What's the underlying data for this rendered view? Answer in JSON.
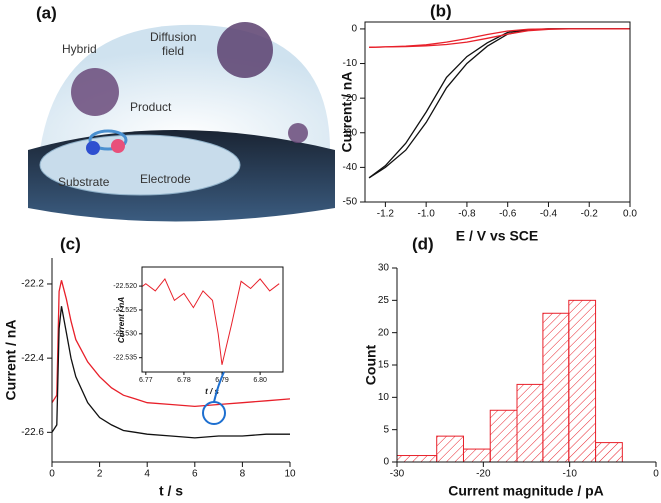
{
  "panel_a": {
    "label": "(a)",
    "hybrid": "Hybrid",
    "diffusion": "Diffusion",
    "field": "field",
    "product": "Product",
    "substrate": "Substrate",
    "electrode": "Electrode"
  },
  "chart_data": [
    {
      "type": "line",
      "label": "(b)",
      "x_label": "E / V vs SCE",
      "y_label": "Current / nA",
      "x": [
        -1.28,
        -1.2,
        -1.1,
        -1.0,
        -0.9,
        -0.8,
        -0.7,
        -0.6,
        -0.5,
        -0.4,
        -0.3,
        -0.2,
        -0.1,
        0.0
      ],
      "series": [
        {
          "color": "#111111",
          "values": [
            -43,
            -40,
            -35,
            -27,
            -17,
            -10,
            -5,
            -1.5,
            -0.3,
            0,
            0,
            0,
            0,
            0
          ]
        },
        {
          "color": "#111111",
          "values": [
            -43,
            -39.5,
            -33,
            -24,
            -14,
            -8,
            -4,
            -1,
            -0.2,
            0,
            0,
            0,
            0,
            0
          ]
        },
        {
          "color": "#e8202a",
          "values": [
            -5.3,
            -5.2,
            -5.0,
            -4.6,
            -3.8,
            -2.8,
            -1.6,
            -0.6,
            -0.1,
            0,
            0,
            0,
            0,
            0
          ]
        },
        {
          "color": "#e8202a",
          "values": [
            -5.3,
            -5.2,
            -5.1,
            -4.9,
            -4.5,
            -3.8,
            -2.7,
            -1.5,
            -0.5,
            -0.1,
            0,
            0,
            0,
            0
          ]
        }
      ],
      "xlim": [
        -1.3,
        0.0
      ],
      "ylim": [
        -50,
        2
      ],
      "xticks": [
        -1.2,
        {
          "value": -1.0,
          "label": "-1.0"
        },
        -0.8,
        -0.6,
        -0.4,
        -0.2,
        {
          "value": 0,
          "label": "0.0"
        }
      ],
      "yticks": [
        0,
        -10,
        -20,
        -30,
        -40,
        -50
      ]
    },
    {
      "type": "line",
      "label": "(c)",
      "x_label": "t / s",
      "y_label": "Current / nA",
      "x": [
        0,
        0.2,
        0.3,
        0.4,
        0.6,
        0.8,
        1,
        1.5,
        2,
        2.5,
        3,
        3.5,
        4,
        5,
        6,
        7,
        8,
        9,
        10
      ],
      "series": [
        {
          "color": "#e8202a",
          "values": [
            -22.52,
            -22.5,
            -22.22,
            -22.19,
            -22.24,
            -22.3,
            -22.35,
            -22.41,
            -22.45,
            -22.48,
            -22.5,
            -22.51,
            -22.52,
            -22.525,
            -22.53,
            -22.525,
            -22.52,
            -22.515,
            -22.51
          ]
        },
        {
          "color": "#111111",
          "values": [
            -22.6,
            -22.58,
            -22.32,
            -22.26,
            -22.33,
            -22.4,
            -22.45,
            -22.52,
            -22.56,
            -22.58,
            -22.595,
            -22.6,
            -22.605,
            -22.61,
            -22.615,
            -22.61,
            -22.61,
            -22.605,
            -22.605
          ]
        }
      ],
      "xlim": [
        0,
        10
      ],
      "ylim": [
        -22.68,
        -22.13
      ],
      "xticks": [
        0,
        2,
        4,
        6,
        8,
        10
      ],
      "yticks": [
        -22.2,
        -22.4,
        -22.6
      ]
    },
    {
      "type": "line",
      "x_label": "t / s",
      "y_label": "Current / nA",
      "x": [
        6.7675,
        6.77,
        6.7725,
        6.775,
        6.7775,
        6.78,
        6.7825,
        6.785,
        6.7875,
        6.789,
        6.79,
        6.7925,
        6.795,
        6.7975,
        6.8,
        6.8025,
        6.805
      ],
      "series": [
        {
          "color": "#e8202a",
          "values": [
            -22.521,
            -22.5195,
            -22.521,
            -22.5185,
            -22.523,
            -22.5215,
            -22.5245,
            -22.521,
            -22.523,
            -22.53,
            -22.5365,
            -22.528,
            -22.519,
            -22.5205,
            -22.5185,
            -22.521,
            -22.5195
          ]
        }
      ],
      "xlim": [
        6.769,
        6.806
      ],
      "ylim": [
        -22.538,
        -22.516
      ],
      "xticks": [
        6.77,
        6.78,
        6.79,
        {
          "value": 6.8,
          "label": "6.80"
        }
      ],
      "yticks": [
        {
          "value": -22.52,
          "label": "-22.520"
        },
        -22.525,
        {
          "value": -22.53,
          "label": "-22.530"
        },
        -22.535
      ]
    },
    {
      "type": "histogram",
      "label": "(d)",
      "x_label": "Current magnitude / pA",
      "y_label": "Count",
      "color": "#e8202a",
      "bins": [
        -30,
        -25.4,
        -22.3,
        -19.2,
        -16.1,
        -13.1,
        -10.1,
        -7,
        -3.9
      ],
      "values": [
        1,
        4,
        2,
        8,
        12,
        23,
        25,
        3
      ],
      "xlim": [
        -30,
        0
      ],
      "ylim": [
        0,
        30
      ],
      "xticks": [
        -30,
        -20,
        -10,
        0
      ],
      "yticks": [
        0,
        5,
        10,
        15,
        20,
        25,
        30
      ]
    }
  ]
}
